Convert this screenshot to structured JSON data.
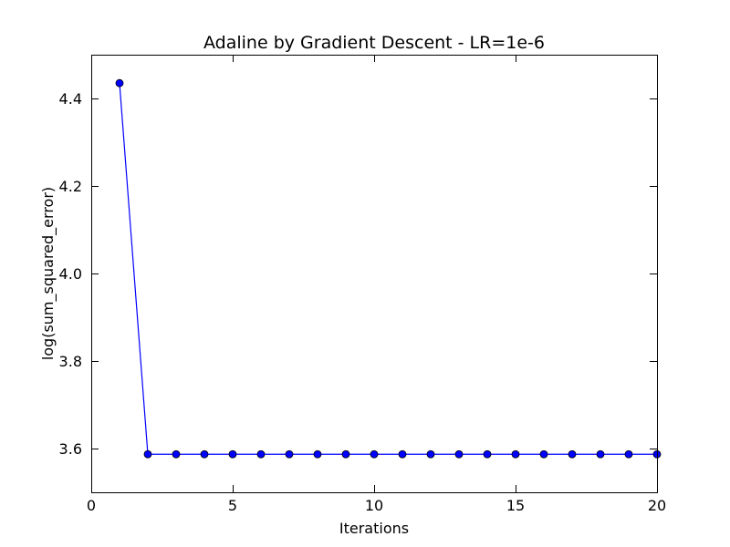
{
  "chart_data": {
    "type": "line",
    "title": "Adaline by Gradient Descent - LR=1e-6",
    "xlabel": "Iterations",
    "ylabel": "log(sum_squared_error)",
    "xlim": [
      0,
      20
    ],
    "ylim": [
      3.5,
      4.5
    ],
    "xticks": [
      0,
      5,
      10,
      15,
      20
    ],
    "yticks": [
      3.6,
      3.8,
      4.0,
      4.2,
      4.4
    ],
    "xtick_labels": [
      "0",
      "5",
      "10",
      "15",
      "20"
    ],
    "ytick_labels": [
      "3.6",
      "3.8",
      "4.0",
      "4.2",
      "4.4"
    ],
    "grid": false,
    "series": [
      {
        "color": "#0000ff",
        "marker": "circle",
        "x": [
          1,
          2,
          3,
          4,
          5,
          6,
          7,
          8,
          9,
          10,
          11,
          12,
          13,
          14,
          15,
          16,
          17,
          18,
          19,
          20
        ],
        "y": [
          4.435,
          3.587,
          3.587,
          3.587,
          3.587,
          3.587,
          3.587,
          3.587,
          3.587,
          3.587,
          3.587,
          3.587,
          3.587,
          3.587,
          3.587,
          3.587,
          3.587,
          3.587,
          3.587,
          3.587
        ]
      }
    ]
  }
}
